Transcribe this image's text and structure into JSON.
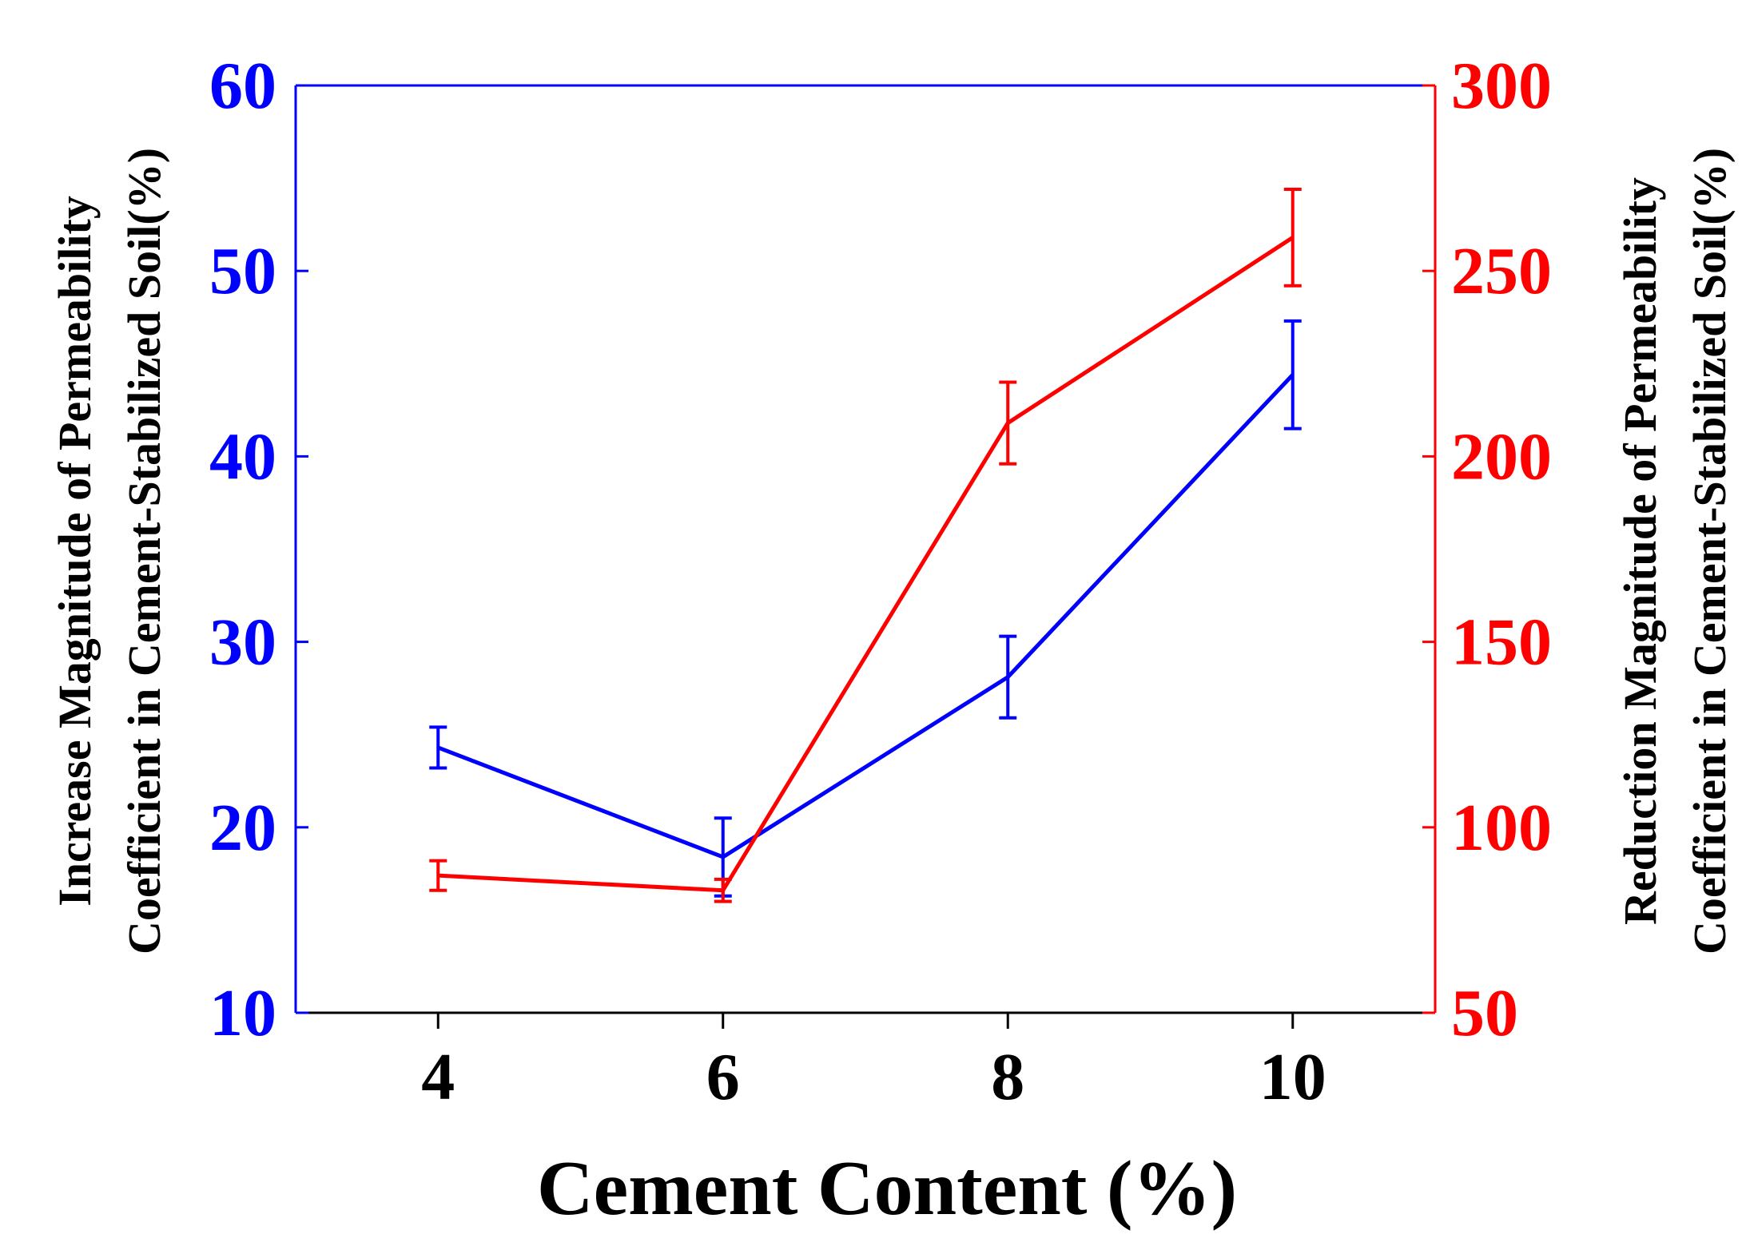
{
  "chart_data": {
    "type": "line",
    "xlabel": "Cement Content (%)",
    "ylabel_left": [
      "Increase Magnitude of Permeability",
      "Coefficient in Cement-Stabilized Soil(%)"
    ],
    "ylabel_right": [
      "Reduction Magnitude of Permeability",
      "Coefficient in Cement-Stabilized Soil(%)"
    ],
    "x_ticks": [
      4,
      6,
      8,
      10
    ],
    "xlim": [
      3,
      11
    ],
    "y_left_ticks": [
      10,
      20,
      30,
      40,
      50,
      60
    ],
    "y_left_lim": [
      10,
      60
    ],
    "y_right_ticks": [
      50,
      100,
      150,
      200,
      250,
      300
    ],
    "y_right_lim": [
      50,
      300
    ],
    "grid": false,
    "legend": "none",
    "series": [
      {
        "axis": "left",
        "color": "#0000ff",
        "x": [
          4,
          6,
          8,
          10
        ],
        "y": [
          24.3,
          18.4,
          28.1,
          44.4
        ],
        "err": [
          1.1,
          2.1,
          2.2,
          2.9
        ]
      },
      {
        "axis": "right",
        "color": "#ff0000",
        "x": [
          4,
          6,
          8,
          10
        ],
        "y": [
          87,
          83,
          209,
          259
        ],
        "err": [
          4,
          3,
          11,
          13
        ]
      }
    ],
    "colors": {
      "left_axis": "#0000ff",
      "right_axis": "#ff0000",
      "bottom_axis": "#000000"
    }
  }
}
